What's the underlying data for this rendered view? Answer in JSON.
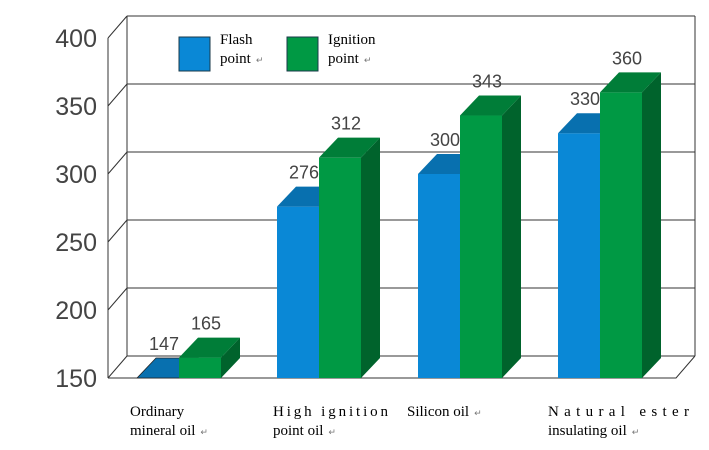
{
  "chart_data": {
    "type": "bar",
    "style": "3d-clustered",
    "categories": [
      [
        "Ordinary",
        "mineral oil"
      ],
      [
        "High ignition",
        "point oil"
      ],
      [
        "Silicon oil"
      ],
      [
        "Natural ester",
        "insulating oil"
      ]
    ],
    "series": [
      {
        "name": "Flash point",
        "legend_lines": [
          "Flash",
          "point"
        ],
        "values": [
          147,
          276,
          300,
          330
        ],
        "color": "#0a88d6"
      },
      {
        "name": "Ignition point",
        "legend_lines": [
          "Ignition",
          "point"
        ],
        "values": [
          165,
          312,
          343,
          360
        ],
        "color": "#009944"
      }
    ],
    "yticks": [
      150,
      200,
      250,
      300,
      350,
      400
    ],
    "ylim": [
      150,
      400
    ],
    "grid": true,
    "legend": "top-left",
    "title": "",
    "xlabel": "",
    "ylabel": ""
  }
}
